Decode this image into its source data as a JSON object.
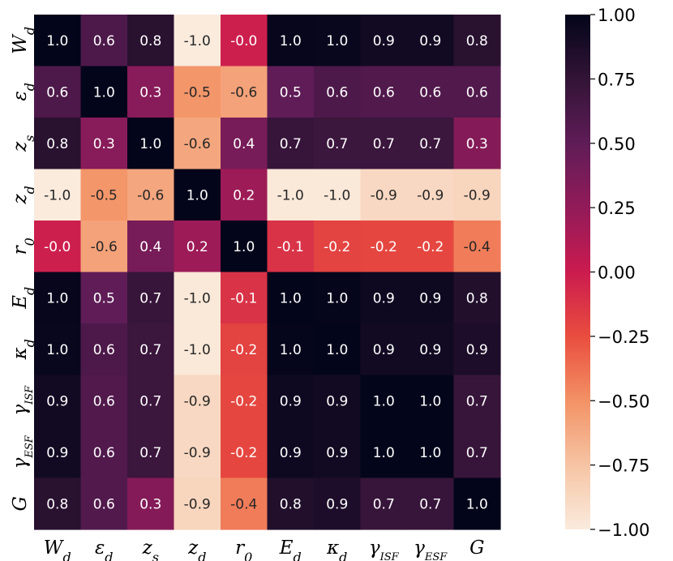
{
  "chart_data": {
    "type": "heatmap",
    "title": "",
    "xlabel": "",
    "ylabel": "",
    "labels": [
      {
        "base": "W",
        "sub": "d"
      },
      {
        "base": "ε",
        "sub": "d"
      },
      {
        "base": "z",
        "sub": "s"
      },
      {
        "base": "z",
        "sub": "d"
      },
      {
        "base": "r",
        "sub": "0"
      },
      {
        "base": "E",
        "sub": "d"
      },
      {
        "base": "κ",
        "sub": "d"
      },
      {
        "base": "γ",
        "sub": "ISF"
      },
      {
        "base": "γ",
        "sub": "ESF"
      },
      {
        "base": "G",
        "sub": ""
      }
    ],
    "value_labels": [
      [
        "1.0",
        "0.6",
        "0.8",
        "-1.0",
        "-0.0",
        "1.0",
        "1.0",
        "0.9",
        "0.9",
        "0.8"
      ],
      [
        "0.6",
        "1.0",
        "0.3",
        "-0.5",
        "-0.6",
        "0.5",
        "0.6",
        "0.6",
        "0.6",
        "0.6"
      ],
      [
        "0.8",
        "0.3",
        "1.0",
        "-0.6",
        "0.4",
        "0.7",
        "0.7",
        "0.7",
        "0.7",
        "0.3"
      ],
      [
        "-1.0",
        "-0.5",
        "-0.6",
        "1.0",
        "0.2",
        "-1.0",
        "-1.0",
        "-0.9",
        "-0.9",
        "-0.9"
      ],
      [
        "-0.0",
        "-0.6",
        "0.4",
        "0.2",
        "1.0",
        "-0.1",
        "-0.2",
        "-0.2",
        "-0.2",
        "-0.4"
      ],
      [
        "1.0",
        "0.5",
        "0.7",
        "-1.0",
        "-0.1",
        "1.0",
        "1.0",
        "0.9",
        "0.9",
        "0.8"
      ],
      [
        "1.0",
        "0.6",
        "0.7",
        "-1.0",
        "-0.2",
        "1.0",
        "1.0",
        "0.9",
        "0.9",
        "0.9"
      ],
      [
        "0.9",
        "0.6",
        "0.7",
        "-0.9",
        "-0.2",
        "0.9",
        "0.9",
        "1.0",
        "1.0",
        "0.7"
      ],
      [
        "0.9",
        "0.6",
        "0.7",
        "-0.9",
        "-0.2",
        "0.9",
        "0.9",
        "1.0",
        "1.0",
        "0.7"
      ],
      [
        "0.8",
        "0.6",
        "0.3",
        "-0.9",
        "-0.4",
        "0.8",
        "0.9",
        "0.7",
        "0.7",
        "1.0"
      ]
    ],
    "values": [
      [
        1.0,
        0.6,
        0.8,
        -1.0,
        -0.02,
        0.98,
        0.97,
        0.92,
        0.92,
        0.8
      ],
      [
        0.6,
        1.0,
        0.3,
        -0.52,
        -0.58,
        0.5,
        0.6,
        0.58,
        0.58,
        0.58
      ],
      [
        0.8,
        0.3,
        1.0,
        -0.6,
        0.38,
        0.72,
        0.7,
        0.7,
        0.7,
        0.32
      ],
      [
        -1.0,
        -0.52,
        -0.6,
        1.0,
        0.2,
        -0.98,
        -0.98,
        -0.88,
        -0.88,
        -0.86
      ],
      [
        -0.02,
        -0.58,
        0.38,
        0.2,
        1.0,
        -0.12,
        -0.2,
        -0.22,
        -0.22,
        -0.42
      ],
      [
        0.98,
        0.5,
        0.72,
        -0.98,
        -0.12,
        1.0,
        0.99,
        0.94,
        0.94,
        0.84
      ],
      [
        0.97,
        0.6,
        0.7,
        -0.98,
        -0.2,
        0.99,
        1.0,
        0.92,
        0.92,
        0.86
      ],
      [
        0.92,
        0.58,
        0.7,
        -0.88,
        -0.22,
        0.94,
        0.92,
        1.0,
        1.0,
        0.72
      ],
      [
        0.92,
        0.58,
        0.7,
        -0.88,
        -0.22,
        0.94,
        0.92,
        1.0,
        1.0,
        0.72
      ],
      [
        0.8,
        0.58,
        0.32,
        -0.86,
        -0.42,
        0.84,
        0.86,
        0.72,
        0.72,
        1.0
      ]
    ],
    "vmin": -1.0,
    "vmax": 1.0,
    "colormap": "rocket_r",
    "colorbar": {
      "ticks": [
        1.0,
        0.75,
        0.5,
        0.25,
        0.0,
        -0.25,
        -0.5,
        -0.75,
        -1.0
      ],
      "tick_labels": [
        "1.00",
        "0.75",
        "0.50",
        "0.25",
        "0.00",
        "−0.25",
        "−0.50",
        "−0.75",
        "−1.00"
      ]
    },
    "grid": false,
    "legend": "colorbar-right"
  }
}
